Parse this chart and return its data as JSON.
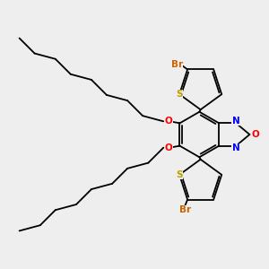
{
  "bg_color": "#eeeeee",
  "bond_color": "#000000",
  "bond_width": 1.3,
  "atom_colors": {
    "Br": "#c86400",
    "S": "#b8a000",
    "O": "#ff0000",
    "N": "#0000ff"
  },
  "fs": 7.5
}
